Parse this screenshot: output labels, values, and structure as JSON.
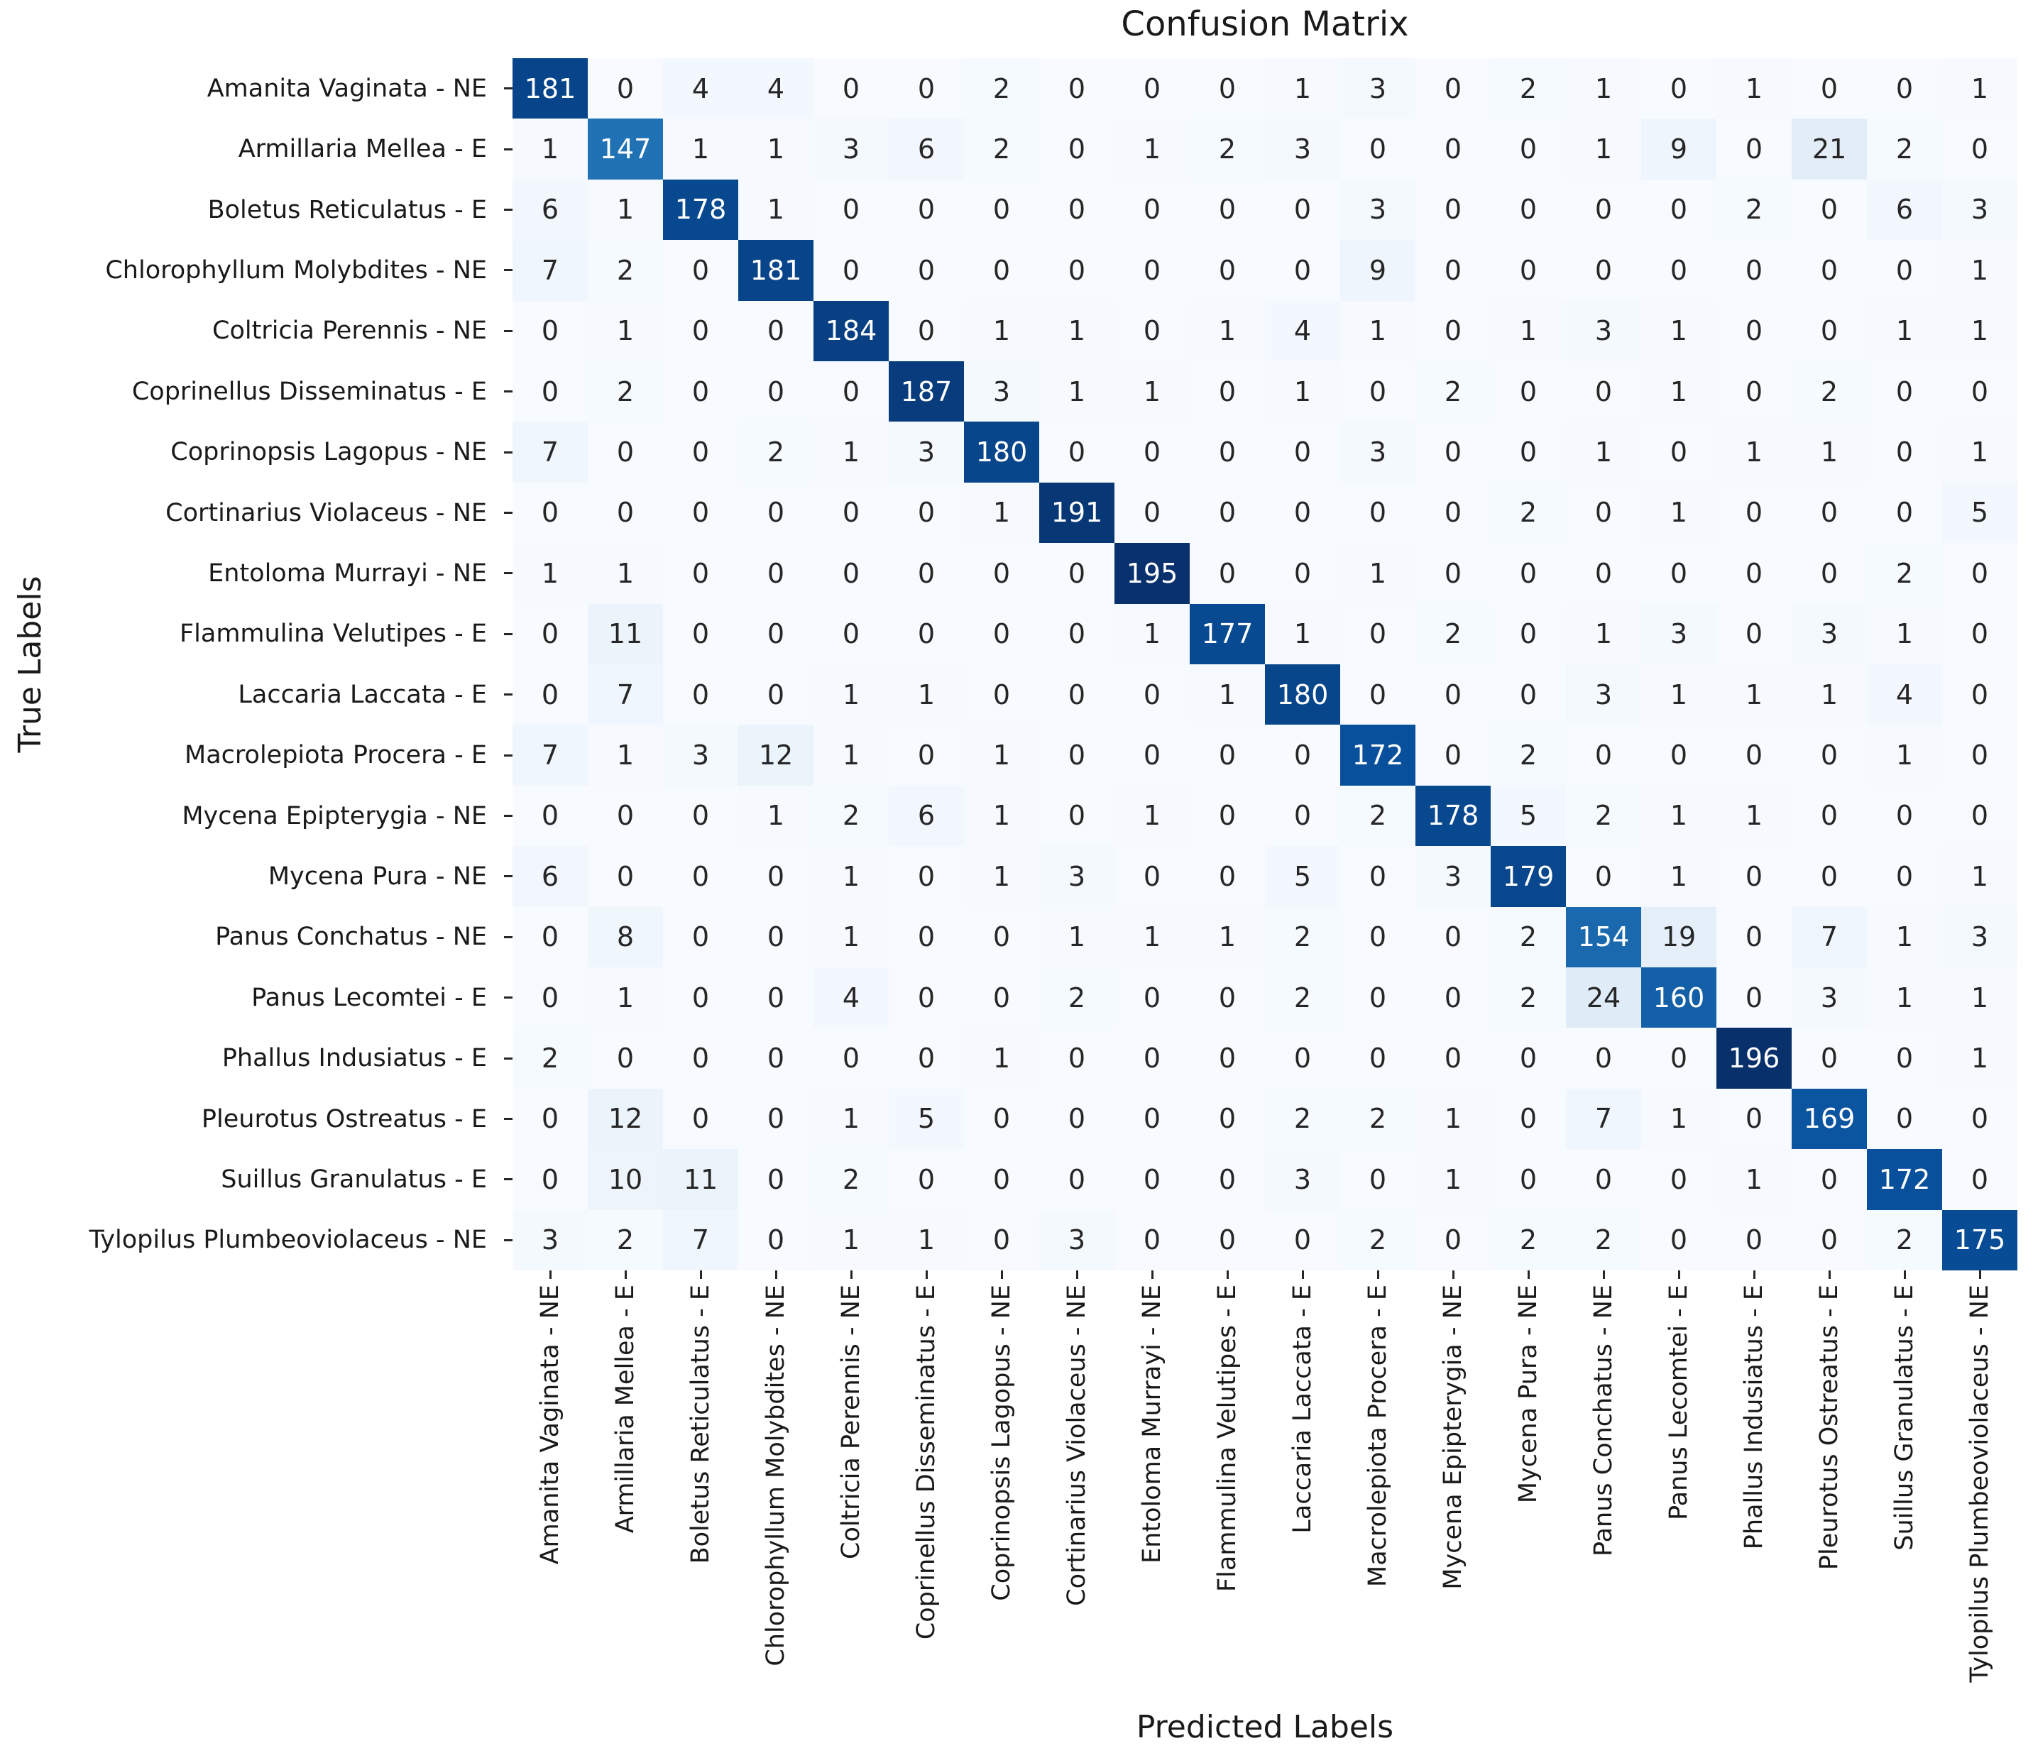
{
  "chart_data": {
    "type": "heatmap",
    "title": "Confusion Matrix",
    "xlabel": "Predicted Labels",
    "ylabel": "True Labels",
    "legend_position": "none",
    "grid": false,
    "labels": [
      "Amanita Vaginata - NE",
      "Armillaria Mellea - E",
      "Boletus Reticulatus - E",
      "Chlorophyllum Molybdites - NE",
      "Coltricia Perennis - NE",
      "Coprinellus Disseminatus - E",
      "Coprinopsis Lagopus - NE",
      "Cortinarius Violaceus - NE",
      "Entoloma Murrayi - NE",
      "Flammulina Velutipes - E",
      "Laccaria Laccata - E",
      "Macrolepiota Procera - E",
      "Mycena Epipterygia - NE",
      "Mycena Pura - NE",
      "Panus Conchatus - NE",
      "Panus Lecomtei - E",
      "Phallus Indusiatus - E",
      "Pleurotus Ostreatus - E",
      "Suillus Granulatus - E",
      "Tylopilus Plumbeoviolaceus - NE"
    ],
    "matrix": [
      [
        181,
        0,
        4,
        4,
        0,
        0,
        2,
        0,
        0,
        0,
        1,
        3,
        0,
        2,
        1,
        0,
        1,
        0,
        0,
        1
      ],
      [
        1,
        147,
        1,
        1,
        3,
        6,
        2,
        0,
        1,
        2,
        3,
        0,
        0,
        0,
        1,
        9,
        0,
        21,
        2,
        0
      ],
      [
        6,
        1,
        178,
        1,
        0,
        0,
        0,
        0,
        0,
        0,
        0,
        3,
        0,
        0,
        0,
        0,
        2,
        0,
        6,
        3
      ],
      [
        7,
        2,
        0,
        181,
        0,
        0,
        0,
        0,
        0,
        0,
        0,
        9,
        0,
        0,
        0,
        0,
        0,
        0,
        0,
        1
      ],
      [
        0,
        1,
        0,
        0,
        184,
        0,
        1,
        1,
        0,
        1,
        4,
        1,
        0,
        1,
        3,
        1,
        0,
        0,
        1,
        1
      ],
      [
        0,
        2,
        0,
        0,
        0,
        187,
        3,
        1,
        1,
        0,
        1,
        0,
        2,
        0,
        0,
        1,
        0,
        2,
        0,
        0
      ],
      [
        7,
        0,
        0,
        2,
        1,
        3,
        180,
        0,
        0,
        0,
        0,
        3,
        0,
        0,
        1,
        0,
        1,
        1,
        0,
        1
      ],
      [
        0,
        0,
        0,
        0,
        0,
        0,
        1,
        191,
        0,
        0,
        0,
        0,
        0,
        2,
        0,
        1,
        0,
        0,
        0,
        5
      ],
      [
        1,
        1,
        0,
        0,
        0,
        0,
        0,
        0,
        195,
        0,
        0,
        1,
        0,
        0,
        0,
        0,
        0,
        0,
        2,
        0
      ],
      [
        0,
        11,
        0,
        0,
        0,
        0,
        0,
        0,
        1,
        177,
        1,
        0,
        2,
        0,
        1,
        3,
        0,
        3,
        1,
        0
      ],
      [
        0,
        7,
        0,
        0,
        1,
        1,
        0,
        0,
        0,
        1,
        180,
        0,
        0,
        0,
        3,
        1,
        1,
        1,
        4,
        0
      ],
      [
        7,
        1,
        3,
        12,
        1,
        0,
        1,
        0,
        0,
        0,
        0,
        172,
        0,
        2,
        0,
        0,
        0,
        0,
        1,
        0
      ],
      [
        0,
        0,
        0,
        1,
        2,
        6,
        1,
        0,
        1,
        0,
        0,
        2,
        178,
        5,
        2,
        1,
        1,
        0,
        0,
        0
      ],
      [
        6,
        0,
        0,
        0,
        1,
        0,
        1,
        3,
        0,
        0,
        5,
        0,
        3,
        179,
        0,
        1,
        0,
        0,
        0,
        1
      ],
      [
        0,
        8,
        0,
        0,
        1,
        0,
        0,
        1,
        1,
        1,
        2,
        0,
        0,
        2,
        154,
        19,
        0,
        7,
        1,
        3
      ],
      [
        0,
        1,
        0,
        0,
        4,
        0,
        0,
        2,
        0,
        0,
        2,
        0,
        0,
        2,
        24,
        160,
        0,
        3,
        1,
        1
      ],
      [
        2,
        0,
        0,
        0,
        0,
        0,
        1,
        0,
        0,
        0,
        0,
        0,
        0,
        0,
        0,
        0,
        196,
        0,
        0,
        1
      ],
      [
        0,
        12,
        0,
        0,
        1,
        5,
        0,
        0,
        0,
        0,
        2,
        2,
        1,
        0,
        7,
        1,
        0,
        169,
        0,
        0
      ],
      [
        0,
        10,
        11,
        0,
        2,
        0,
        0,
        0,
        0,
        0,
        3,
        0,
        1,
        0,
        0,
        0,
        1,
        0,
        172,
        0
      ],
      [
        3,
        2,
        7,
        0,
        1,
        1,
        0,
        3,
        0,
        0,
        0,
        2,
        0,
        2,
        2,
        0,
        0,
        0,
        2,
        175
      ]
    ],
    "vmin": 0,
    "vmax": 196,
    "colormap": "Blues",
    "colormap_anchors": [
      "#f7fbff",
      "#deebf7",
      "#c6dbef",
      "#9ecae1",
      "#6baed6",
      "#4292c6",
      "#2171b5",
      "#08519c",
      "#08306b"
    ],
    "annot_color_dark": "#262626",
    "annot_color_light": "#ffffff",
    "tick_color": "#262626",
    "text_color": "#1a1a1a"
  }
}
